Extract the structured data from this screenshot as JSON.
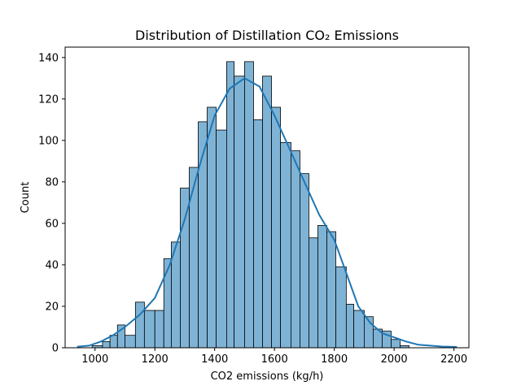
{
  "chart_data": {
    "type": "bar",
    "title": "Distribution of Distillation CO₂ Emissions",
    "xlabel": "CO2 emissions (kg/h)",
    "ylabel": "Count",
    "xlim": [
      900,
      2250
    ],
    "ylim": [
      0,
      145
    ],
    "xticks": [
      1000,
      1200,
      1400,
      1600,
      1800,
      2000,
      2200
    ],
    "yticks": [
      0,
      20,
      40,
      60,
      80,
      100,
      120,
      140
    ],
    "grid": false,
    "legend": "none",
    "bar_color": "#7fb3d5",
    "bar_edge_color": "#000000",
    "kde_color": "#1f77b4",
    "bins": [
      {
        "x0": 990,
        "x1": 1025,
        "count": 1
      },
      {
        "x0": 1025,
        "x1": 1050,
        "count": 3
      },
      {
        "x0": 1050,
        "x1": 1075,
        "count": 6
      },
      {
        "x0": 1075,
        "x1": 1100,
        "count": 11
      },
      {
        "x0": 1100,
        "x1": 1135,
        "count": 6
      },
      {
        "x0": 1135,
        "x1": 1165,
        "count": 22
      },
      {
        "x0": 1165,
        "x1": 1200,
        "count": 18
      },
      {
        "x0": 1200,
        "x1": 1230,
        "count": 18
      },
      {
        "x0": 1230,
        "x1": 1255,
        "count": 43
      },
      {
        "x0": 1255,
        "x1": 1285,
        "count": 51
      },
      {
        "x0": 1285,
        "x1": 1315,
        "count": 77
      },
      {
        "x0": 1315,
        "x1": 1345,
        "count": 87
      },
      {
        "x0": 1345,
        "x1": 1375,
        "count": 109
      },
      {
        "x0": 1375,
        "x1": 1405,
        "count": 116
      },
      {
        "x0": 1405,
        "x1": 1440,
        "count": 105
      },
      {
        "x0": 1440,
        "x1": 1465,
        "count": 138
      },
      {
        "x0": 1465,
        "x1": 1500,
        "count": 131
      },
      {
        "x0": 1500,
        "x1": 1530,
        "count": 138
      },
      {
        "x0": 1530,
        "x1": 1560,
        "count": 110
      },
      {
        "x0": 1560,
        "x1": 1590,
        "count": 131
      },
      {
        "x0": 1590,
        "x1": 1620,
        "count": 116
      },
      {
        "x0": 1620,
        "x1": 1655,
        "count": 99
      },
      {
        "x0": 1655,
        "x1": 1685,
        "count": 95
      },
      {
        "x0": 1685,
        "x1": 1715,
        "count": 84
      },
      {
        "x0": 1715,
        "x1": 1745,
        "count": 53
      },
      {
        "x0": 1745,
        "x1": 1775,
        "count": 59
      },
      {
        "x0": 1775,
        "x1": 1805,
        "count": 56
      },
      {
        "x0": 1805,
        "x1": 1840,
        "count": 39
      },
      {
        "x0": 1840,
        "x1": 1865,
        "count": 21
      },
      {
        "x0": 1865,
        "x1": 1900,
        "count": 18
      },
      {
        "x0": 1900,
        "x1": 1930,
        "count": 15
      },
      {
        "x0": 1930,
        "x1": 1960,
        "count": 9
      },
      {
        "x0": 1960,
        "x1": 1990,
        "count": 8
      },
      {
        "x0": 1990,
        "x1": 2020,
        "count": 4
      },
      {
        "x0": 2020,
        "x1": 2050,
        "count": 1
      }
    ],
    "kde": [
      {
        "x": 940,
        "y": 0.5
      },
      {
        "x": 980,
        "y": 1
      },
      {
        "x": 1020,
        "y": 3
      },
      {
        "x": 1060,
        "y": 6
      },
      {
        "x": 1100,
        "y": 10
      },
      {
        "x": 1150,
        "y": 16
      },
      {
        "x": 1200,
        "y": 24
      },
      {
        "x": 1250,
        "y": 40
      },
      {
        "x": 1300,
        "y": 62
      },
      {
        "x": 1350,
        "y": 88
      },
      {
        "x": 1400,
        "y": 112
      },
      {
        "x": 1450,
        "y": 125
      },
      {
        "x": 1500,
        "y": 130
      },
      {
        "x": 1550,
        "y": 126
      },
      {
        "x": 1600,
        "y": 112
      },
      {
        "x": 1650,
        "y": 96
      },
      {
        "x": 1700,
        "y": 80
      },
      {
        "x": 1750,
        "y": 64
      },
      {
        "x": 1800,
        "y": 52
      },
      {
        "x": 1840,
        "y": 36
      },
      {
        "x": 1880,
        "y": 20
      },
      {
        "x": 1920,
        "y": 12
      },
      {
        "x": 1960,
        "y": 7
      },
      {
        "x": 2000,
        "y": 5
      },
      {
        "x": 2040,
        "y": 3
      },
      {
        "x": 2080,
        "y": 1.5
      },
      {
        "x": 2120,
        "y": 1
      },
      {
        "x": 2160,
        "y": 0.6
      },
      {
        "x": 2210,
        "y": 0.4
      }
    ]
  }
}
